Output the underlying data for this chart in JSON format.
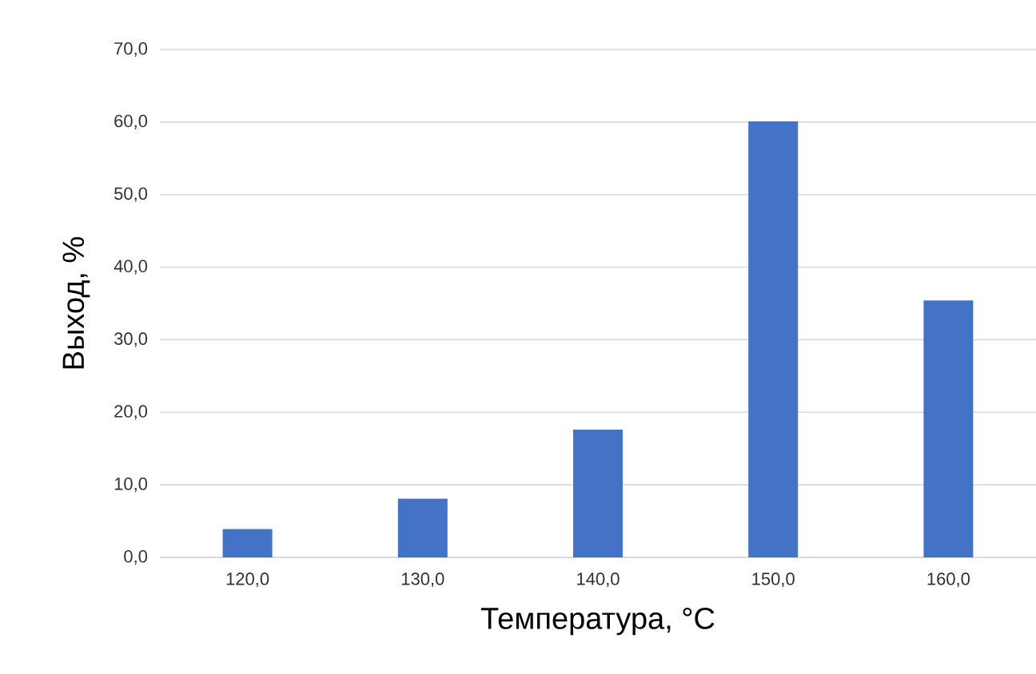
{
  "chart_data": {
    "type": "bar",
    "xlabel": "Температура, °C",
    "ylabel": "Выход, %",
    "categories": [
      "120,0",
      "130,0",
      "140,0",
      "150,0",
      "160,0"
    ],
    "values": [
      3.9,
      8.1,
      17.6,
      60.1,
      35.4
    ],
    "color": "#4472c4",
    "ylim": [
      0,
      70
    ],
    "yticks": [
      {
        "value": 0,
        "label": "0,0"
      },
      {
        "value": 10,
        "label": "10,0"
      },
      {
        "value": 20,
        "label": "20,0"
      },
      {
        "value": 30,
        "label": "30,0"
      },
      {
        "value": 40,
        "label": "40,0"
      },
      {
        "value": 50,
        "label": "50,0"
      },
      {
        "value": 60,
        "label": "60,0"
      },
      {
        "value": 70,
        "label": "70,0"
      }
    ],
    "grid": "y"
  }
}
